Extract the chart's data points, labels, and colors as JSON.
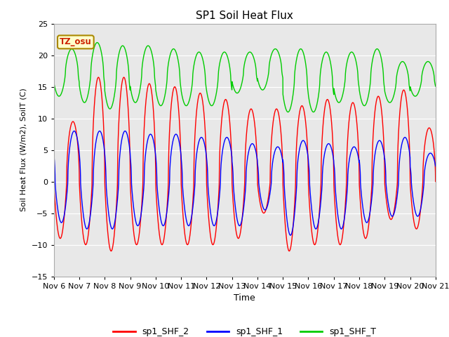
{
  "title": "SP1 Soil Heat Flux",
  "xlabel": "Time",
  "ylabel": "Soil Heat Flux (W/m2), SoilT (C)",
  "ylim": [
    -15,
    25
  ],
  "x_tick_labels": [
    "Nov 6",
    "Nov 7",
    "Nov 8",
    "Nov 9",
    "Nov 10",
    "Nov 11",
    "Nov 12",
    "Nov 13",
    "Nov 14",
    "Nov 15",
    "Nov 16",
    "Nov 17",
    "Nov 18",
    "Nov 19",
    "Nov 20",
    "Nov 21"
  ],
  "bg_color": "#e8e8e8",
  "annotation_text": "TZ_osu",
  "annotation_bg": "#ffffcc",
  "annotation_border": "#aa8800",
  "line_colors": {
    "shf2": "#ff0000",
    "shf1": "#0000ff",
    "shft": "#00cc00"
  },
  "legend_labels": [
    "sp1_SHF_2",
    "sp1_SHF_1",
    "sp1_SHF_T"
  ],
  "shf2_peaks": [
    9.5,
    16.5,
    16.5,
    15.5,
    15.0,
    14.0,
    13.0,
    11.5,
    11.5,
    12.0,
    13.0,
    12.5,
    13.5,
    14.5,
    8.5
  ],
  "shf2_troughs": [
    -9.0,
    -10.0,
    -11.0,
    -10.0,
    -10.0,
    -10.0,
    -10.0,
    -9.0,
    -5.0,
    -11.0,
    -10.0,
    -10.0,
    -9.0,
    -6.0,
    -7.5
  ],
  "shf1_peaks": [
    8.0,
    8.0,
    8.0,
    7.5,
    7.5,
    7.0,
    7.0,
    6.0,
    5.5,
    6.5,
    6.0,
    5.5,
    6.5,
    7.0,
    4.5
  ],
  "shf1_troughs": [
    -6.5,
    -7.5,
    -7.5,
    -7.0,
    -7.0,
    -7.0,
    -7.0,
    -7.0,
    -4.5,
    -8.5,
    -7.5,
    -7.5,
    -6.5,
    -5.5,
    -5.5
  ],
  "shft_peaks": [
    21.0,
    22.0,
    21.5,
    21.5,
    21.0,
    20.5,
    20.5,
    20.5,
    21.0,
    21.0,
    20.5,
    20.5,
    21.0,
    19.0,
    19.0
  ],
  "shft_troughs": [
    13.5,
    12.5,
    11.5,
    12.5,
    12.0,
    12.0,
    12.0,
    14.0,
    14.5,
    11.0,
    11.0,
    12.5,
    12.0,
    12.5,
    13.5
  ]
}
